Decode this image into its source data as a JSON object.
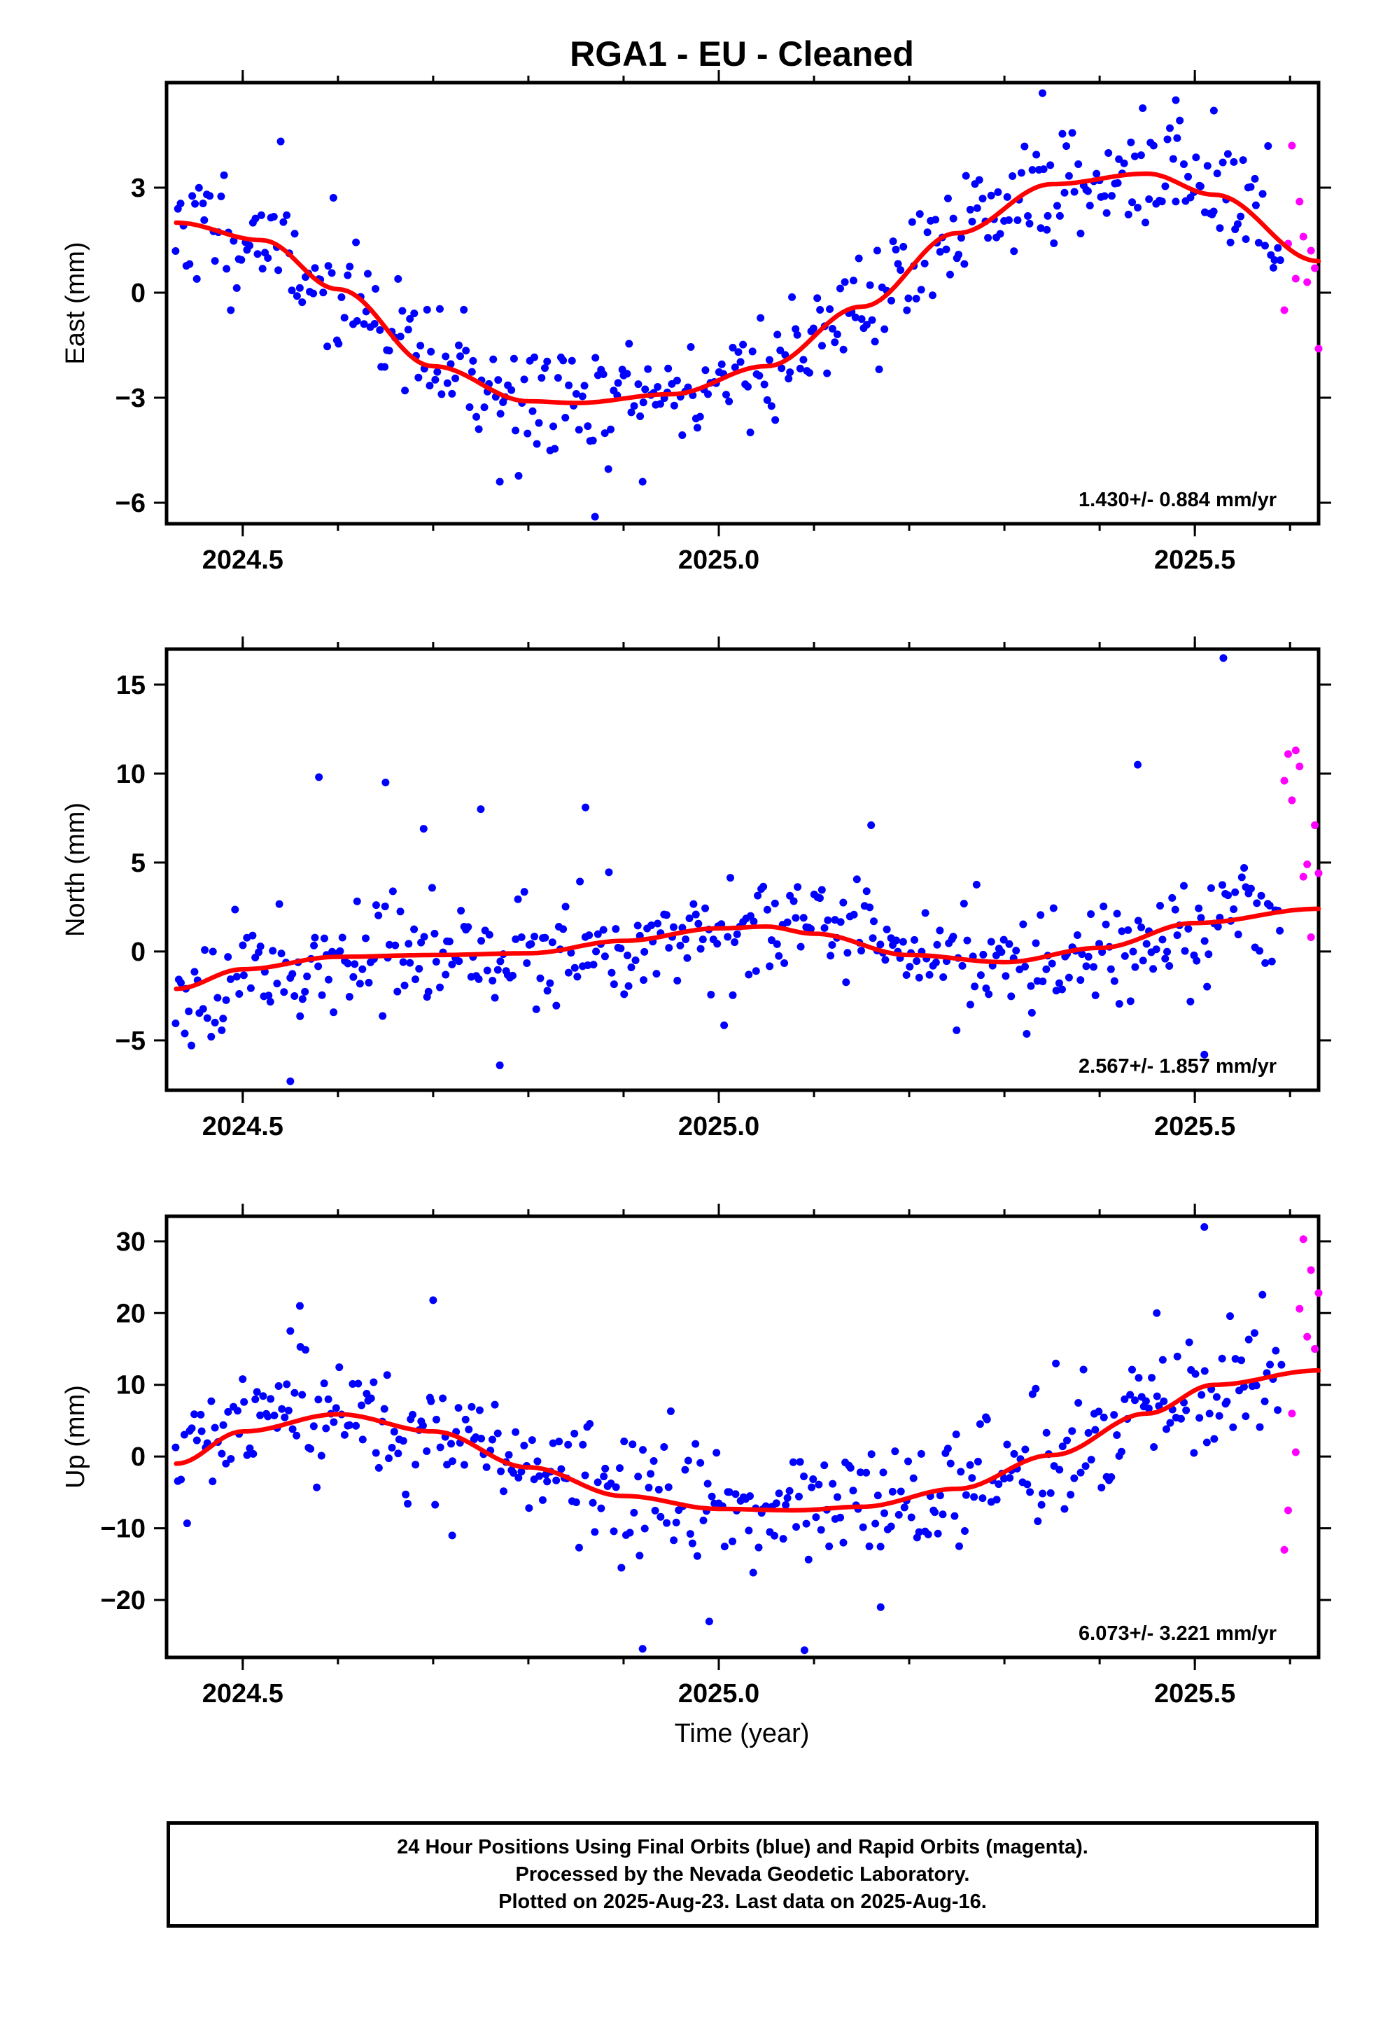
{
  "title": "RGA1  - EU - Cleaned",
  "xlabel": "Time (year)",
  "colors": {
    "final": "#0000ff",
    "rapid": "#ff00ff",
    "fit": "#ff0000",
    "axis": "#000000"
  },
  "footer": {
    "line1": "24 Hour Positions Using Final Orbits (blue) and Rapid Orbits (magenta).",
    "line2": "Processed by the Nevada Geodetic Laboratory.",
    "line3": "Plotted on 2025-Aug-23. Last data on 2025-Aug-16."
  },
  "chart_data": [
    {
      "type": "scatter",
      "name": "east",
      "ylabel": "East (mm)",
      "xlim": [
        2024.42,
        2025.63
      ],
      "ylim": [
        -6.6,
        6.0
      ],
      "xticks": [
        2024.5,
        2025.0,
        2025.5
      ],
      "xtick_labels": [
        "2024.5",
        "2025.0",
        "2025.5"
      ],
      "yticks": [
        -6,
        -3,
        0,
        3
      ],
      "ytick_labels": [
        "−6",
        "−3",
        "0",
        "3"
      ],
      "rate_label": "1.430+/- 0.884 mm/yr",
      "fit": {
        "x": [
          2024.43,
          2024.52,
          2024.6,
          2024.7,
          2024.8,
          2024.85,
          2024.95,
          2025.05,
          2025.15,
          2025.25,
          2025.35,
          2025.45,
          2025.52,
          2025.63
        ],
        "y": [
          2.0,
          1.5,
          0.1,
          -2.1,
          -3.1,
          -3.15,
          -2.9,
          -2.1,
          -0.4,
          1.7,
          3.1,
          3.4,
          2.8,
          0.9
        ]
      },
      "rapid": {
        "x": [
          2025.594,
          2025.598,
          2025.602,
          2025.606,
          2025.61,
          2025.614,
          2025.618,
          2025.622,
          2025.626,
          2025.63
        ],
        "y": [
          -0.5,
          1.4,
          4.2,
          0.4,
          2.6,
          1.6,
          0.3,
          1.2,
          0.7,
          -1.6
        ]
      },
      "final_x_start": 2024.43,
      "final_x_end": 2025.59,
      "final_n": 420,
      "final_seed": 11,
      "final_noise": 0.85,
      "final_outliers": [
        [
          2025.34,
          5.7
        ],
        [
          2025.48,
          5.5
        ],
        [
          2025.52,
          5.2
        ],
        [
          2024.87,
          -6.4
        ],
        [
          2024.77,
          -5.4
        ],
        [
          2024.92,
          -5.4
        ]
      ]
    },
    {
      "type": "scatter",
      "name": "north",
      "ylabel": "North (mm)",
      "xlim": [
        2024.42,
        2025.63
      ],
      "ylim": [
        -7.8,
        17.0
      ],
      "xticks": [
        2024.5,
        2025.0,
        2025.5
      ],
      "xtick_labels": [
        "2024.5",
        "2025.0",
        "2025.5"
      ],
      "yticks": [
        -5,
        0,
        5,
        10,
        15
      ],
      "ytick_labels": [
        "−5",
        "0",
        "5",
        "10",
        "15"
      ],
      "rate_label": "2.567+/- 1.857 mm/yr",
      "fit": {
        "x": [
          2024.43,
          2024.5,
          2024.6,
          2024.7,
          2024.8,
          2024.9,
          2025.0,
          2025.05,
          2025.1,
          2025.2,
          2025.3,
          2025.4,
          2025.5,
          2025.63
        ],
        "y": [
          -2.1,
          -1.0,
          -0.3,
          -0.2,
          -0.1,
          0.6,
          1.3,
          1.4,
          1.0,
          -0.2,
          -0.6,
          0.2,
          1.6,
          2.4
        ]
      },
      "rapid": {
        "x": [
          2025.594,
          2025.598,
          2025.602,
          2025.606,
          2025.61,
          2025.614,
          2025.618,
          2025.622,
          2025.626,
          2025.63
        ],
        "y": [
          9.6,
          11.1,
          8.5,
          11.3,
          10.4,
          4.2,
          4.9,
          0.8,
          7.1,
          4.4
        ]
      },
      "final_x_start": 2024.43,
      "final_x_end": 2025.59,
      "final_n": 420,
      "final_seed": 23,
      "final_noise": 1.5,
      "final_outliers": [
        [
          2024.58,
          9.8
        ],
        [
          2024.65,
          9.5
        ],
        [
          2024.75,
          8.0
        ],
        [
          2024.86,
          8.1
        ],
        [
          2024.69,
          6.9
        ],
        [
          2025.16,
          7.1
        ],
        [
          2025.44,
          10.5
        ],
        [
          2025.53,
          16.5
        ],
        [
          2024.55,
          -7.3
        ],
        [
          2024.77,
          -6.4
        ],
        [
          2025.51,
          -5.8
        ]
      ]
    },
    {
      "type": "scatter",
      "name": "up",
      "ylabel": "Up (mm)",
      "xlim": [
        2024.42,
        2025.63
      ],
      "ylim": [
        -28.0,
        33.5
      ],
      "xticks": [
        2024.5,
        2025.0,
        2025.5
      ],
      "xtick_labels": [
        "2024.5",
        "2025.0",
        "2025.5"
      ],
      "yticks": [
        -20,
        -10,
        0,
        10,
        20,
        30
      ],
      "ytick_labels": [
        "−20",
        "−10",
        "0",
        "10",
        "20",
        "30"
      ],
      "rate_label": "6.073+/- 3.221 mm/yr",
      "fit": {
        "x": [
          2024.43,
          2024.5,
          2024.6,
          2024.7,
          2024.8,
          2024.9,
          2025.0,
          2025.08,
          2025.15,
          2025.25,
          2025.35,
          2025.45,
          2025.52,
          2025.63
        ],
        "y": [
          -1.0,
          3.5,
          5.9,
          3.5,
          -1.5,
          -5.5,
          -7.3,
          -7.5,
          -7.0,
          -4.5,
          0.2,
          6.0,
          10.0,
          12.0
        ]
      },
      "rapid": {
        "x": [
          2025.594,
          2025.598,
          2025.602,
          2025.606,
          2025.61,
          2025.614,
          2025.618,
          2025.622,
          2025.626,
          2025.63
        ],
        "y": [
          -13.0,
          -7.5,
          6.0,
          0.6,
          20.6,
          30.3,
          16.7,
          26.0,
          15.0,
          22.8
        ]
      },
      "final_x_start": 2024.43,
      "final_x_end": 2025.59,
      "final_n": 420,
      "final_seed": 37,
      "final_noise": 4.2,
      "final_outliers": [
        [
          2024.56,
          21.0
        ],
        [
          2024.7,
          21.8
        ],
        [
          2024.55,
          17.5
        ],
        [
          2025.51,
          32.0
        ],
        [
          2025.46,
          20.0
        ],
        [
          2024.92,
          -26.8
        ],
        [
          2025.09,
          -27.0
        ],
        [
          2024.99,
          -23.0
        ],
        [
          2025.17,
          -21.0
        ],
        [
          2024.72,
          -11.0
        ]
      ]
    }
  ]
}
